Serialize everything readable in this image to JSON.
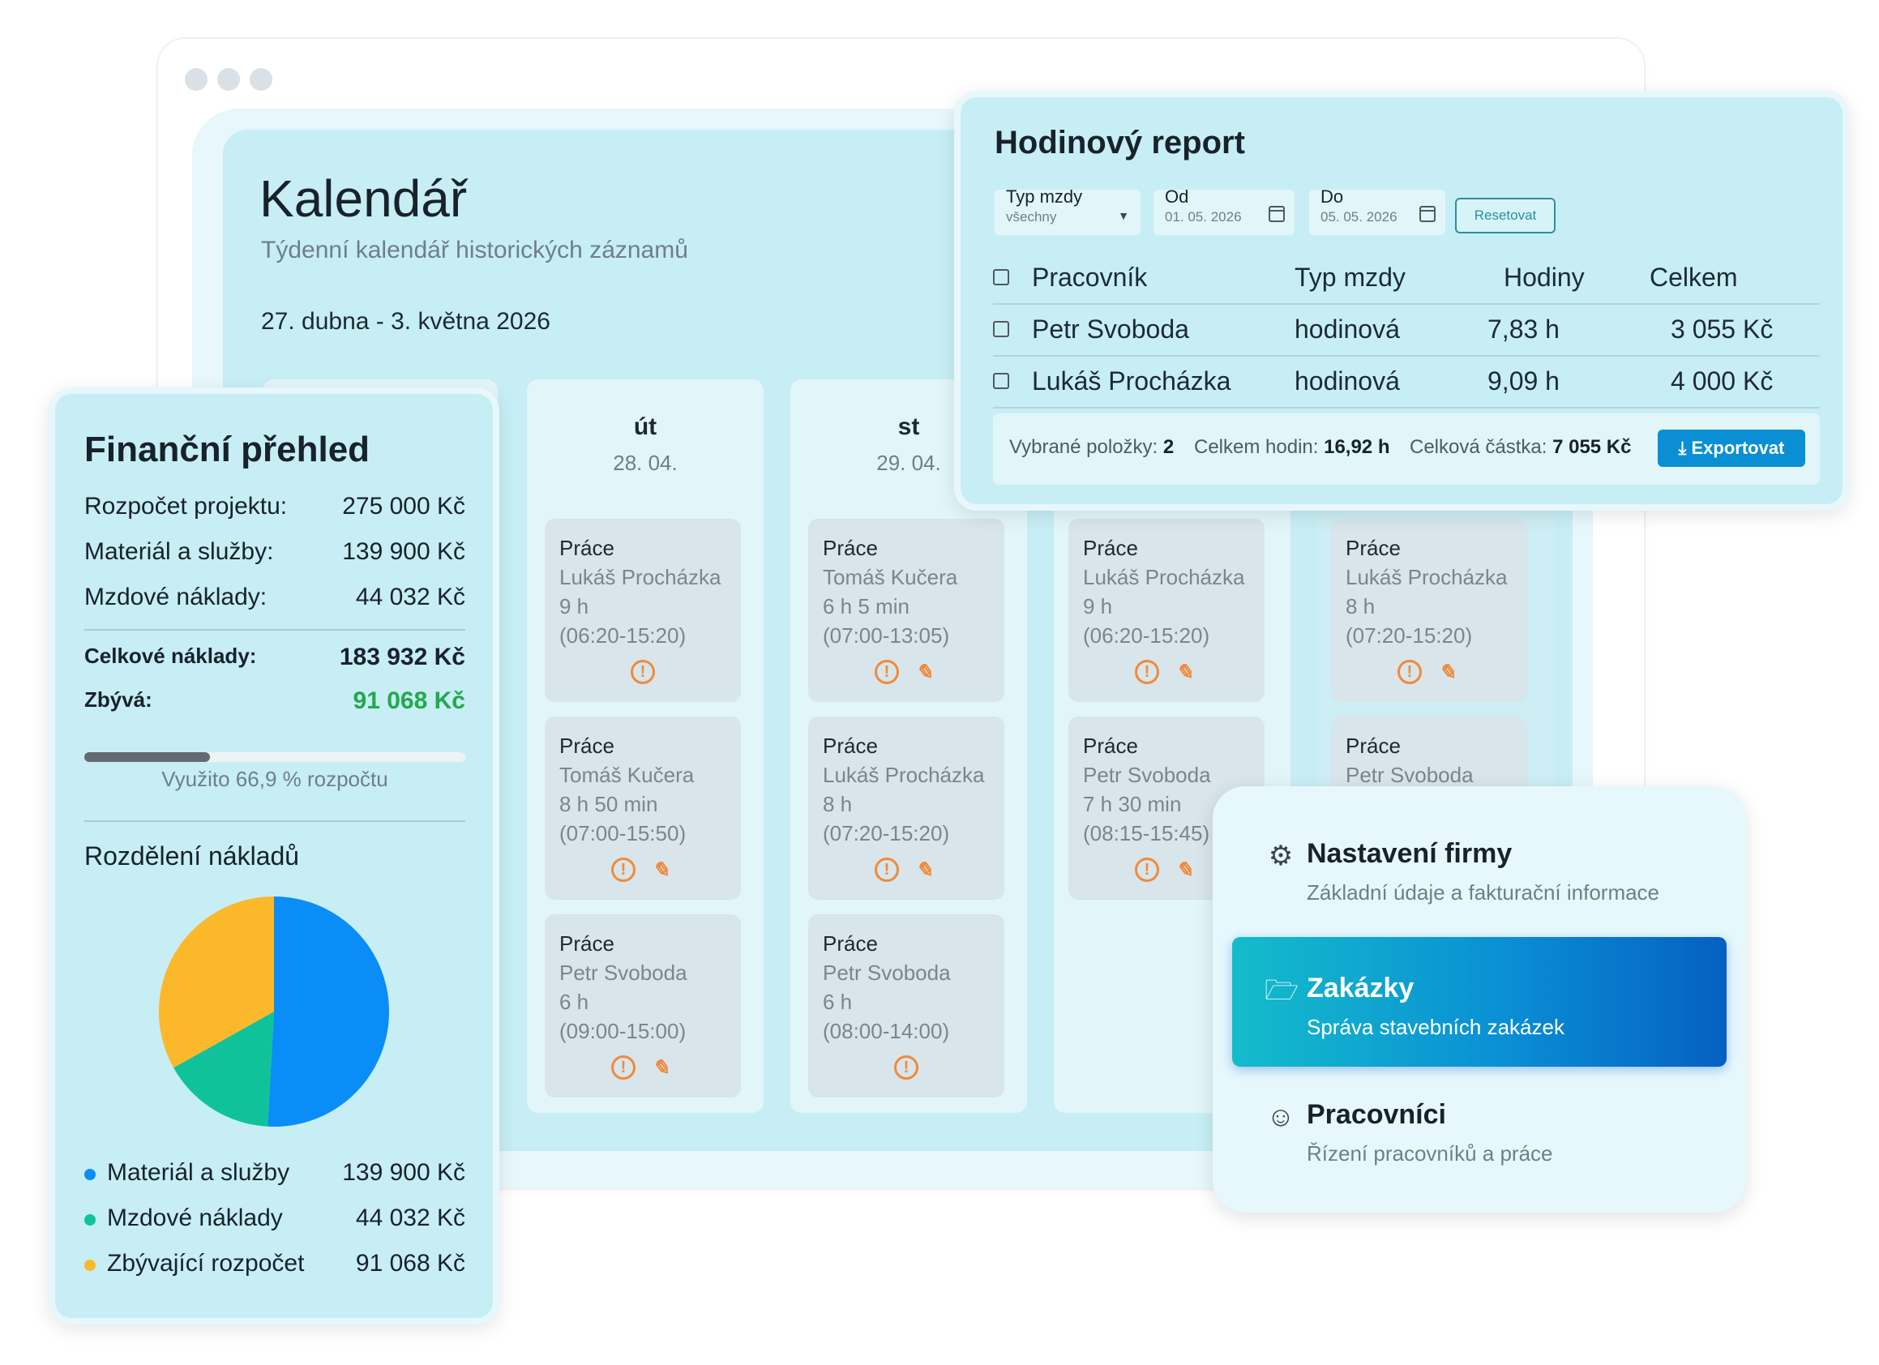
{
  "calendar": {
    "title": "Kalendář",
    "subtitle": "Týdenní kalendář historických záznamů",
    "range": "27. dubna - 3. května 2026",
    "days": [
      {
        "name": "út",
        "date": "28. 04."
      },
      {
        "name": "st",
        "date": "29. 04."
      }
    ],
    "cards": [
      {
        "type": "Práce",
        "worker": "Lukáš Procházka",
        "duration": "9 h",
        "time": "(06:20-15:20)"
      },
      {
        "type": "Práce",
        "worker": "Tomáš Kučera",
        "duration": "8 h 50 min",
        "time": "(07:00-15:50)"
      },
      {
        "type": "Práce",
        "worker": "Petr Svoboda",
        "duration": "6 h",
        "time": "(09:00-15:00)"
      },
      {
        "type": "Práce",
        "worker": "Tomáš Kučera",
        "duration": "6 h 5 min",
        "time": "(07:00-13:05)"
      },
      {
        "type": "Práce",
        "worker": "Lukáš Procházka",
        "duration": "8 h",
        "time": "(07:20-15:20)"
      },
      {
        "type": "Práce",
        "worker": "Petr Svoboda",
        "duration": "6 h",
        "time": "(08:00-14:00)"
      },
      {
        "type": "Práce",
        "worker": "Lukáš Procházka",
        "duration": "9 h",
        "time": "(06:20-15:20)"
      },
      {
        "type": "Práce",
        "worker": "Petr Svoboda",
        "duration": "7 h 30 min",
        "time": "(08:15-15:45)"
      },
      {
        "type": "Práce",
        "worker": "Lukáš Procházka",
        "duration": "8 h",
        "time": "(07:20-15:20)"
      },
      {
        "type": "Práce",
        "worker": "Petr Svoboda",
        "duration": "",
        "time": ""
      }
    ]
  },
  "report": {
    "title": "Hodinový report",
    "wage_type_label": "Typ mzdy",
    "wage_type_value": "všechny",
    "from_label": "Od",
    "from_value": "01. 05. 2026",
    "to_label": "Do",
    "to_value": "05. 05. 2026",
    "reset_label": "Resetovat",
    "columns": [
      "Pracovník",
      "Typ mzdy",
      "Hodiny",
      "Celkem"
    ],
    "rows": [
      {
        "worker": "Petr Svoboda",
        "wage_type": "hodinová",
        "hours": "7,83 h",
        "total": "3 055 Kč"
      },
      {
        "worker": "Lukáš Procházka",
        "wage_type": "hodinová",
        "hours": "9,09 h",
        "total": "4 000 Kč"
      }
    ],
    "summary": {
      "selected_label": "Vybrané položky:",
      "selected_value": "2",
      "hours_label": "Celkem hodin:",
      "hours_value": "16,92 h",
      "amount_label": "Celková částka:",
      "amount_value": "7 055 Kč"
    },
    "export_label": "Exportovat"
  },
  "finance": {
    "title": "Finanční přehled",
    "rows": [
      {
        "label": "Rozpočet projektu:",
        "value": "275 000 Kč"
      },
      {
        "label": "Materiál a služby:",
        "value": "139 900 Kč"
      },
      {
        "label": "Mzdové náklady:",
        "value": "44 032 Kč"
      }
    ],
    "total_label": "Celkové náklady:",
    "total_value": "183 932 Kč",
    "remaining_label": "Zbývá:",
    "remaining_value": "91 068 Kč",
    "usage_fraction": 0.33,
    "usage_label": "Využito 66,9 % rozpočtu",
    "breakdown_title": "Rozdělení nákladů",
    "legend": [
      {
        "label": "Materiál a služby",
        "value": "139 900 Kč",
        "color": "#0a8df6"
      },
      {
        "label": "Mzdové náklady",
        "value": "44 032 Kč",
        "color": "#0fc29a"
      },
      {
        "label": "Zbývající rozpočet",
        "value": "91 068 Kč",
        "color": "#fbb82a"
      }
    ]
  },
  "chart_data": {
    "type": "pie",
    "categories": [
      "Materiál a služby",
      "Mzdové náklady",
      "Zbývající rozpočet"
    ],
    "values": [
      139900,
      44032,
      91068
    ],
    "colors": [
      "#0a8df6",
      "#0fc29a",
      "#fbb82a"
    ]
  },
  "nav": {
    "items": [
      {
        "title": "Nastavení firmy",
        "subtitle": "Základní údaje a fakturační informace",
        "icon": "gear-icon"
      },
      {
        "title": "Zakázky",
        "subtitle": "Správa stavebních zakázek",
        "icon": "folder-icon"
      },
      {
        "title": "Pracovníci",
        "subtitle": "Řízení pracovníků a práce",
        "icon": "users-icon"
      }
    ]
  }
}
